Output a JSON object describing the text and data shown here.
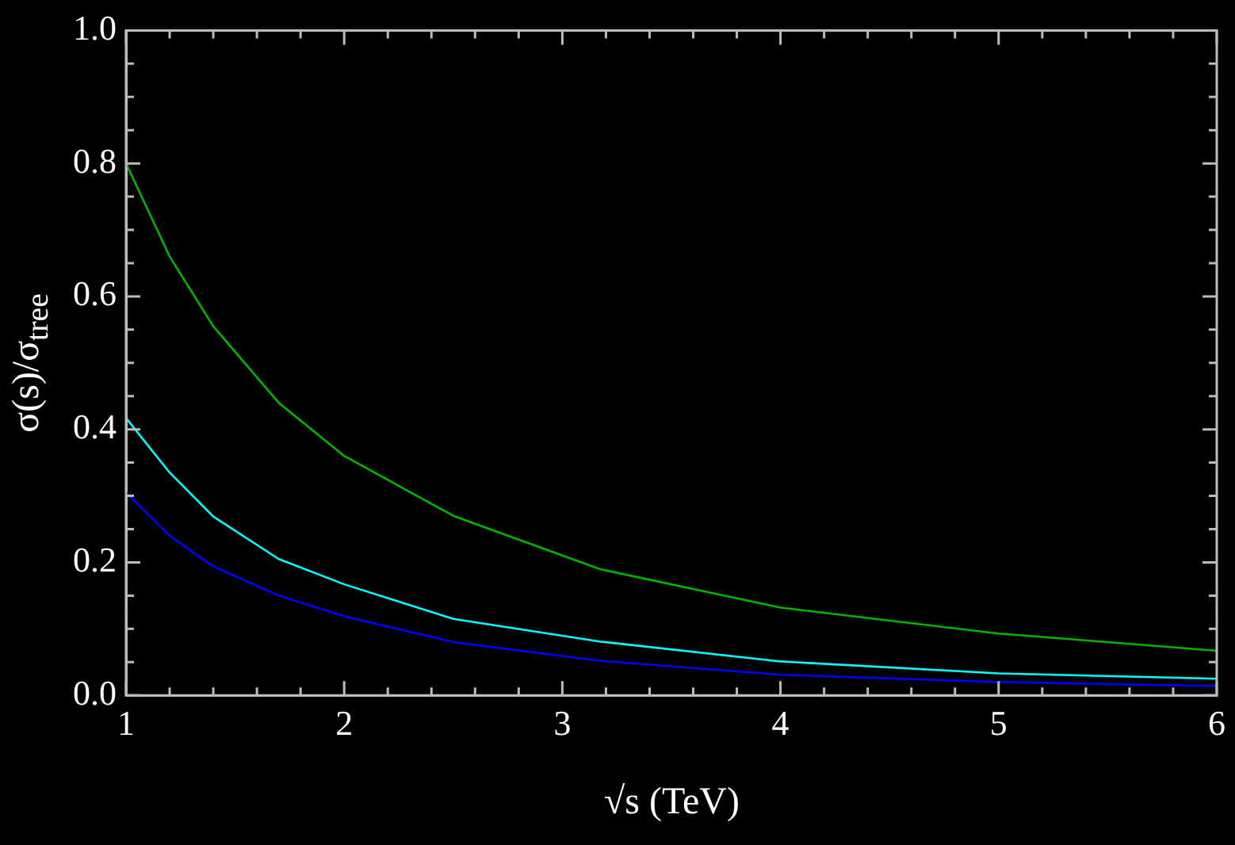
{
  "chart_data": {
    "type": "line",
    "xlabel": "√s (TeV)",
    "ylabel": "σ(s)/σ$_{tree}$",
    "x": [
      1,
      1.2,
      1.4,
      1.7,
      2,
      2.5,
      3.17,
      4,
      5,
      6
    ],
    "series": [
      {
        "color": "#00b400",
        "values": [
          0.8,
          0.66,
          0.555,
          0.44,
          0.36,
          0.27,
          0.19,
          0.132,
          0.093,
          0.067
        ]
      },
      {
        "color": "#00ffff",
        "values": [
          0.417,
          0.335,
          0.269,
          0.205,
          0.167,
          0.115,
          0.081,
          0.051,
          0.033,
          0.025
        ]
      },
      {
        "color": "#0000ff",
        "values": [
          0.305,
          0.24,
          0.194,
          0.15,
          0.119,
          0.08,
          0.052,
          0.031,
          0.02,
          0.014
        ]
      }
    ],
    "xlim": [
      1,
      6
    ],
    "ylim": [
      0,
      1
    ],
    "xticks": [
      1,
      {
        "value": 1.2,
        "label": null
      },
      {
        "value": 1.4,
        "label": null
      },
      {
        "value": 1.6,
        "label": null
      },
      {
        "value": 1.8,
        "label": null
      },
      2,
      {
        "value": 2.2,
        "label": null
      },
      {
        "value": 2.4,
        "label": null
      },
      {
        "value": 2.6,
        "label": null
      },
      {
        "value": 2.8,
        "label": null
      },
      3,
      {
        "value": 3.2,
        "label": null
      },
      {
        "value": 3.4,
        "label": null
      },
      {
        "value": 3.6,
        "label": null
      },
      {
        "value": 3.8,
        "label": null
      },
      4,
      {
        "value": 4.2,
        "label": null
      },
      {
        "value": 4.4,
        "label": null
      },
      {
        "value": 4.6,
        "label": null
      },
      {
        "value": 4.8,
        "label": null
      },
      5,
      {
        "value": 5.2,
        "label": null
      },
      {
        "value": 5.4,
        "label": null
      },
      {
        "value": 5.6,
        "label": null
      },
      {
        "value": 5.8,
        "label": null
      },
      6
    ],
    "yticks": [
      {
        "value": 0,
        "label": "0.0"
      },
      {
        "value": 0.05,
        "label": null
      },
      {
        "value": 0.1,
        "label": null
      },
      {
        "value": 0.15,
        "label": null
      },
      0.2,
      {
        "value": 0.25,
        "label": null
      },
      {
        "value": 0.3,
        "label": null
      },
      {
        "value": 0.35,
        "label": null
      },
      0.4,
      {
        "value": 0.45,
        "label": null
      },
      {
        "value": 0.5,
        "label": null
      },
      {
        "value": 0.55,
        "label": null
      },
      0.6,
      {
        "value": 0.65,
        "label": null
      },
      {
        "value": 0.7,
        "label": null
      },
      {
        "value": 0.75,
        "label": null
      },
      0.8,
      {
        "value": 0.85,
        "label": null
      },
      {
        "value": 0.9,
        "label": null
      },
      {
        "value": 0.95,
        "label": null
      },
      {
        "value": 1,
        "label": "1.0"
      }
    ],
    "grid": false,
    "legend": false,
    "marker": "none",
    "line_style": "solid"
  }
}
